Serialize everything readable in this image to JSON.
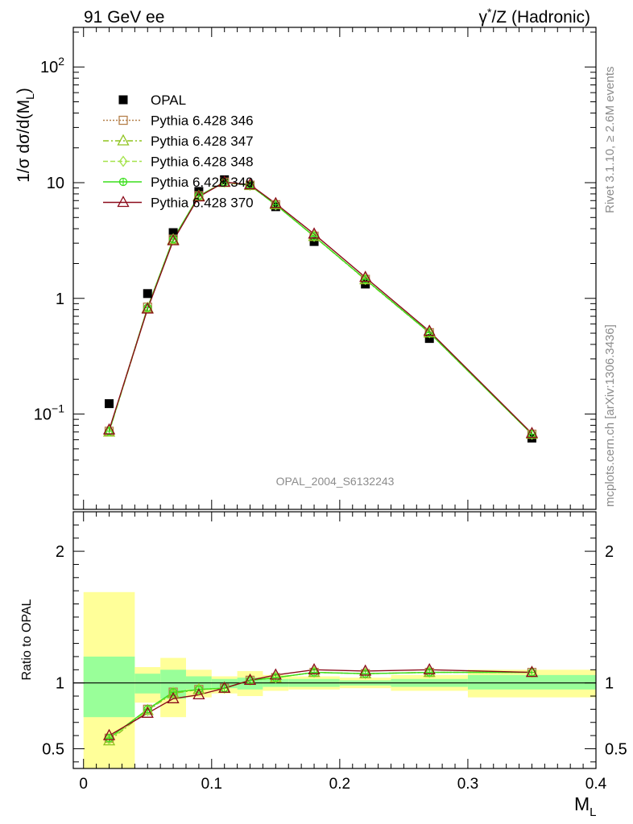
{
  "header": {
    "left": "91 GeV ee",
    "right_prefix": "γ",
    "right_sup": "*",
    "right_rest": "/Z (Hadronic)"
  },
  "side": {
    "rivet": "Rivet 3.1.10, ≥ 2.6M events",
    "mcplots": "mcplots.cern.ch [arXiv:1306.3436]"
  },
  "watermark": "OPAL_2004_S6132243",
  "axes": {
    "main_ylabel": "1/σ dσ/d(M",
    "main_ylabel_sub": "L",
    "main_ylabel_end": ")",
    "ratio_ylabel": "Ratio to OPAL",
    "xlabel": "M",
    "xlabel_sub": "L"
  },
  "colors": {
    "opal": "#000000",
    "p346": "#b5804a",
    "p347": "#8fc31f",
    "p348": "#a4e34a",
    "p349": "#3adf1c",
    "p370": "#8b0a1a",
    "band_yellow": "#ffff99",
    "band_green": "#99ff99"
  },
  "chart_data": [
    {
      "type": "line",
      "panel": "main",
      "yscale": "log",
      "xlim": [
        -0.008,
        0.4
      ],
      "ylim": [
        0.015,
        220
      ],
      "x_ticks": [
        0,
        0.1,
        0.2,
        0.3,
        0.4
      ],
      "y_tick_labels": [
        {
          "value": 0.1,
          "base": "10",
          "exp": "−1"
        },
        {
          "value": 1,
          "text": "1"
        },
        {
          "value": 10,
          "text": "10"
        },
        {
          "value": 100,
          "base": "10",
          "exp": "2"
        }
      ],
      "legend_position": "top-left",
      "x": [
        0.02,
        0.05,
        0.07,
        0.09,
        0.11,
        0.13,
        0.15,
        0.18,
        0.22,
        0.27,
        0.35
      ],
      "series": [
        {
          "name": "OPAL",
          "marker": "square",
          "values": [
            0.123,
            1.1,
            3.7,
            8.4,
            10.6,
            9.5,
            6.2,
            3.1,
            1.33,
            0.45,
            0.062
          ]
        },
        {
          "name": "Pythia 6.428 346",
          "marker": "open-square",
          "line": "dotted",
          "values": [
            0.071,
            0.84,
            3.25,
            7.7,
            10.1,
            9.5,
            6.45,
            3.45,
            1.46,
            0.505,
            0.067
          ]
        },
        {
          "name": "Pythia 6.428 347",
          "marker": "open-triangle",
          "line": "dashdot",
          "values": [
            0.07,
            0.82,
            3.2,
            7.65,
            10.05,
            9.45,
            6.45,
            3.43,
            1.45,
            0.503,
            0.067
          ]
        },
        {
          "name": "Pythia 6.428 348",
          "marker": "open-diamond",
          "line": "dashed",
          "values": [
            0.071,
            0.83,
            3.25,
            7.7,
            10.1,
            9.5,
            6.45,
            3.44,
            1.46,
            0.505,
            0.067
          ]
        },
        {
          "name": "Pythia 6.428 349",
          "marker": "open-circle-cross",
          "line": "solid",
          "values": [
            0.071,
            0.83,
            3.25,
            7.7,
            10.1,
            9.5,
            6.45,
            3.44,
            1.46,
            0.505,
            0.067
          ]
        },
        {
          "name": "Pythia 6.428 370",
          "marker": "open-triangle",
          "line": "solid",
          "values": [
            0.073,
            0.81,
            3.15,
            7.55,
            10.1,
            9.6,
            6.6,
            3.6,
            1.52,
            0.52,
            0.068
          ]
        }
      ]
    },
    {
      "type": "line",
      "panel": "ratio",
      "xlim": [
        -0.008,
        0.4
      ],
      "ylim": [
        0.35,
        2.3
      ],
      "x_ticks": [
        0,
        0.1,
        0.2,
        0.3,
        0.4
      ],
      "y_ticks": [
        0.5,
        1,
        2
      ],
      "reference_line": 1,
      "bands": [
        {
          "x": [
            0.0,
            0.04
          ],
          "yellow": [
            0.35,
            1.69
          ],
          "green": [
            0.74,
            1.2
          ]
        },
        {
          "x": [
            0.04,
            0.06
          ],
          "yellow": [
            0.85,
            1.12
          ],
          "green": [
            0.92,
            1.07
          ]
        },
        {
          "x": [
            0.06,
            0.08
          ],
          "yellow": [
            0.74,
            1.19
          ],
          "green": [
            0.88,
            1.1
          ]
        },
        {
          "x": [
            0.08,
            0.1
          ],
          "yellow": [
            0.89,
            1.1
          ],
          "green": [
            0.95,
            1.05
          ]
        },
        {
          "x": [
            0.1,
            0.12
          ],
          "yellow": [
            0.92,
            1.05
          ],
          "green": [
            0.96,
            1.03
          ]
        },
        {
          "x": [
            0.12,
            0.14
          ],
          "yellow": [
            0.9,
            1.09
          ],
          "green": [
            0.95,
            1.04
          ]
        },
        {
          "x": [
            0.14,
            0.16
          ],
          "yellow": [
            0.94,
            1.06
          ],
          "green": [
            0.97,
            1.03
          ]
        },
        {
          "x": [
            0.16,
            0.2
          ],
          "yellow": [
            0.95,
            1.05
          ],
          "green": [
            0.97,
            1.03
          ]
        },
        {
          "x": [
            0.2,
            0.24
          ],
          "yellow": [
            0.96,
            1.04
          ],
          "green": [
            0.98,
            1.02
          ]
        },
        {
          "x": [
            0.24,
            0.3
          ],
          "yellow": [
            0.94,
            1.06
          ],
          "green": [
            0.97,
            1.03
          ]
        },
        {
          "x": [
            0.3,
            0.4
          ],
          "yellow": [
            0.89,
            1.1
          ],
          "green": [
            0.95,
            1.06
          ]
        }
      ],
      "x": [
        0.02,
        0.05,
        0.07,
        0.09,
        0.11,
        0.13,
        0.15,
        0.18,
        0.22,
        0.27,
        0.35
      ],
      "series": [
        {
          "name": "Pythia 6.428 346",
          "values": [
            0.58,
            0.8,
            0.93,
            0.95,
            0.96,
            1.02,
            1.04,
            1.08,
            1.07,
            1.08,
            1.08
          ]
        },
        {
          "name": "Pythia 6.428 347",
          "values": [
            0.56,
            0.79,
            0.92,
            0.95,
            0.96,
            1.02,
            1.04,
            1.08,
            1.07,
            1.08,
            1.08
          ]
        },
        {
          "name": "Pythia 6.428 348",
          "values": [
            0.57,
            0.79,
            0.93,
            0.95,
            0.96,
            1.02,
            1.04,
            1.08,
            1.07,
            1.08,
            1.08
          ]
        },
        {
          "name": "Pythia 6.428 349",
          "values": [
            0.58,
            0.8,
            0.93,
            0.95,
            0.96,
            1.02,
            1.04,
            1.08,
            1.07,
            1.08,
            1.08
          ]
        },
        {
          "name": "Pythia 6.428 370",
          "values": [
            0.6,
            0.77,
            0.88,
            0.91,
            0.96,
            1.02,
            1.06,
            1.1,
            1.09,
            1.1,
            1.08
          ]
        }
      ]
    }
  ]
}
